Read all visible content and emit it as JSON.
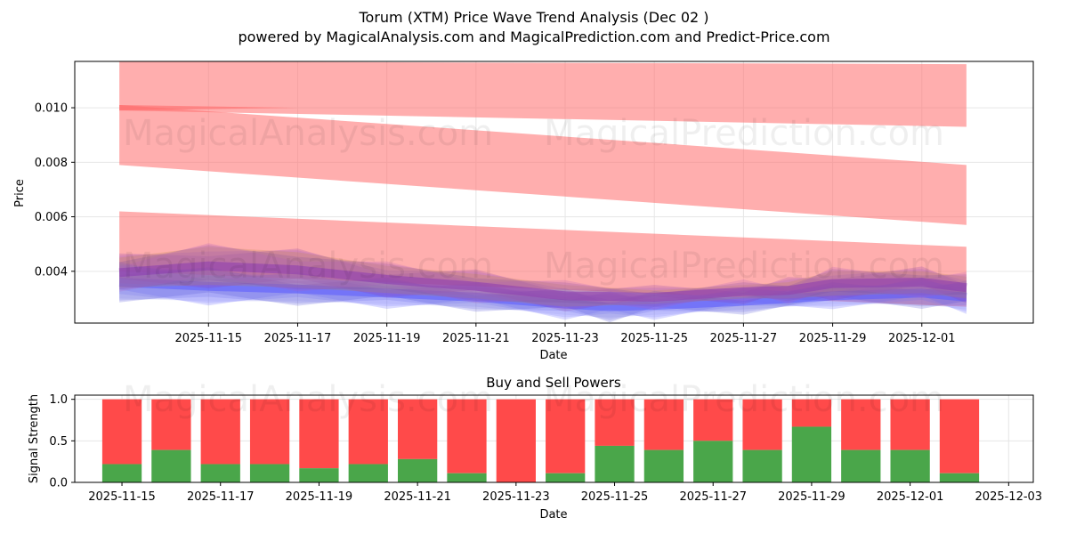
{
  "header": {
    "title": "Torum (XTM) Price Wave Trend Analysis (Dec 02 )",
    "subtitle": "powered by MagicalAnalysis.com and MagicalPrediction.com and Predict-Price.com"
  },
  "watermarks": [
    "MagicalAnalysis.com",
    "MagicalPrediction.com"
  ],
  "colors": {
    "sell": "#ff4a4a",
    "buy": "#4aa64a",
    "band": "#ff6b6b",
    "wave_blue": "#5a5aff",
    "wave_purple": "#8a3ab0"
  },
  "chart_data": [
    {
      "type": "area",
      "title": "",
      "xlabel": "Date",
      "ylabel": "Price",
      "xlim": [
        "2025-11-12T00:00",
        "2025-12-03T12:00"
      ],
      "ylim": [
        0.0021,
        0.0117
      ],
      "x_ticks": [
        "2025-11-15",
        "2025-11-17",
        "2025-11-19",
        "2025-11-21",
        "2025-11-23",
        "2025-11-25",
        "2025-11-27",
        "2025-11-29",
        "2025-12-01"
      ],
      "y_ticks": [
        0.004,
        0.006,
        0.008,
        0.01
      ],
      "y_tick_labels": [
        "0.004",
        "0.006",
        "0.008",
        "0.010"
      ],
      "grid": true,
      "prediction_bands": [
        {
          "name": "upper band",
          "x": [
            "2025-11-13",
            "2025-12-02"
          ],
          "low": [
            0.0099,
            0.0093
          ],
          "high": [
            0.0117,
            0.0116
          ]
        },
        {
          "name": "middle band",
          "x": [
            "2025-11-13",
            "2025-12-02"
          ],
          "low": [
            0.0079,
            0.0057
          ],
          "high": [
            0.0101,
            0.0079
          ]
        },
        {
          "name": "lower band",
          "x": [
            "2025-11-13",
            "2025-12-02"
          ],
          "low": [
            0.004,
            0.0027
          ],
          "high": [
            0.0062,
            0.0049
          ]
        }
      ],
      "price_waves": [
        {
          "name": "wave blue",
          "x": [
            "2025-11-13",
            "2025-11-15",
            "2025-11-17",
            "2025-11-19",
            "2025-11-21",
            "2025-11-23",
            "2025-11-24",
            "2025-11-25",
            "2025-11-27",
            "2025-11-29",
            "2025-12-01",
            "2025-12-02"
          ],
          "low": [
            0.003,
            0.0029,
            0.0029,
            0.0028,
            0.0027,
            0.0024,
            0.0023,
            0.0024,
            0.0026,
            0.0028,
            0.0028,
            0.0026
          ],
          "high": [
            0.0042,
            0.004,
            0.0038,
            0.0036,
            0.0034,
            0.0032,
            0.0031,
            0.0031,
            0.0032,
            0.0034,
            0.0036,
            0.0035
          ]
        },
        {
          "name": "wave purple",
          "x": [
            "2025-11-13",
            "2025-11-15",
            "2025-11-17",
            "2025-11-19",
            "2025-11-21",
            "2025-11-23",
            "2025-11-25",
            "2025-11-27",
            "2025-11-28",
            "2025-11-29",
            "2025-12-01",
            "2025-12-02"
          ],
          "low": [
            0.0034,
            0.0035,
            0.0034,
            0.0032,
            0.003,
            0.0027,
            0.0028,
            0.003,
            0.003,
            0.0031,
            0.0032,
            0.003
          ],
          "high": [
            0.0045,
            0.0049,
            0.0047,
            0.0042,
            0.0039,
            0.0035,
            0.0033,
            0.0035,
            0.0036,
            0.004,
            0.004,
            0.0038
          ]
        }
      ]
    },
    {
      "type": "bar",
      "title": "Buy and Sell Powers",
      "xlabel": "Date",
      "ylabel": "Signal Strength",
      "ylim": [
        0,
        1.05
      ],
      "y_ticks": [
        0,
        0.5,
        1
      ],
      "y_tick_labels": [
        "0.0",
        "0.5",
        "1.0"
      ],
      "x_ticks": [
        "2025-11-15",
        "2025-11-17",
        "2025-11-19",
        "2025-11-21",
        "2025-11-23",
        "2025-11-25",
        "2025-11-27",
        "2025-11-29",
        "2025-12-01",
        "2025-12-03"
      ],
      "grid": true,
      "categories": [
        "2025-11-15",
        "2025-11-16",
        "2025-11-17",
        "2025-11-18",
        "2025-11-19",
        "2025-11-20",
        "2025-11-21",
        "2025-11-22",
        "2025-11-23",
        "2025-11-24",
        "2025-11-25",
        "2025-11-26",
        "2025-11-27",
        "2025-11-28",
        "2025-11-29",
        "2025-11-30",
        "2025-12-01",
        "2025-12-02"
      ],
      "series": [
        {
          "name": "Buy",
          "values": [
            0.22,
            0.39,
            0.22,
            0.22,
            0.17,
            0.22,
            0.28,
            0.11,
            0.0,
            0.11,
            0.44,
            0.39,
            0.5,
            0.39,
            0.67,
            0.39,
            0.39,
            0.11
          ]
        },
        {
          "name": "Sell",
          "values": [
            0.78,
            0.61,
            0.78,
            0.78,
            0.83,
            0.78,
            0.72,
            0.89,
            1.0,
            0.89,
            0.56,
            0.61,
            0.5,
            0.61,
            0.33,
            0.61,
            0.61,
            0.89
          ]
        }
      ]
    }
  ]
}
